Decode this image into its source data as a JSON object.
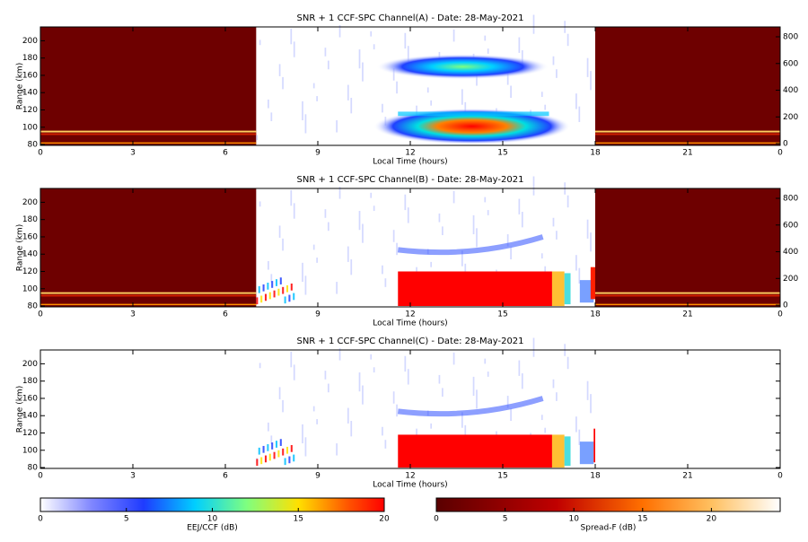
{
  "chart_data": [
    {
      "type": "heatmap",
      "title": "SNR + 1 CCF-SPC Channel(A) - Date: 28-May-2021",
      "xlabel": "Local Time (hours)",
      "ylabel": "Range (km)",
      "xlim": [
        0,
        24
      ],
      "xticks": [
        0,
        3,
        6,
        9,
        12,
        15,
        18,
        21,
        {
          "value": 24,
          "label": "0"
        }
      ],
      "ylim": [
        79,
        216
      ],
      "yticks": [
        80,
        100,
        120,
        140,
        160,
        180,
        200
      ],
      "y2lim": [
        -13,
        874
      ],
      "y2ticks": [
        0,
        200,
        400,
        600,
        800
      ]
    },
    {
      "type": "heatmap",
      "title": "SNR + 1 CCF-SPC Channel(B) - Date: 28-May-2021",
      "xlabel": "Local Time (hours)",
      "ylabel": "Range (km)",
      "xlim": [
        0,
        24
      ],
      "xticks": [
        0,
        3,
        6,
        9,
        12,
        15,
        18,
        21,
        {
          "value": 24,
          "label": "0"
        }
      ],
      "ylim": [
        79,
        216
      ],
      "yticks": [
        80,
        100,
        120,
        140,
        160,
        180,
        200
      ],
      "y2lim": [
        -13,
        874
      ],
      "y2ticks": [
        0,
        200,
        400,
        600,
        800
      ]
    },
    {
      "type": "heatmap",
      "title": "SNR + 1 CCF-SPC Channel(C) - Date: 28-May-2021",
      "xlabel": "Local Time (hours)",
      "ylabel": "Range (km)",
      "xlim": [
        0,
        24
      ],
      "xticks": [
        0,
        3,
        6,
        9,
        12,
        15,
        18,
        21,
        {
          "value": 24,
          "label": "0"
        }
      ],
      "ylim": [
        79,
        216
      ],
      "yticks": [
        80,
        100,
        120,
        140,
        160,
        180,
        200
      ]
    },
    {
      "type": "colorbar",
      "xlabel": "EEJ/CCF (dB)",
      "xlim": [
        0,
        20
      ],
      "xticks": [
        0,
        5,
        10,
        15,
        20
      ]
    },
    {
      "type": "colorbar",
      "xlabel": "Spread-F (dB)",
      "xlim": [
        0,
        25
      ],
      "xticks": [
        0,
        5,
        10,
        15,
        20
      ]
    }
  ]
}
